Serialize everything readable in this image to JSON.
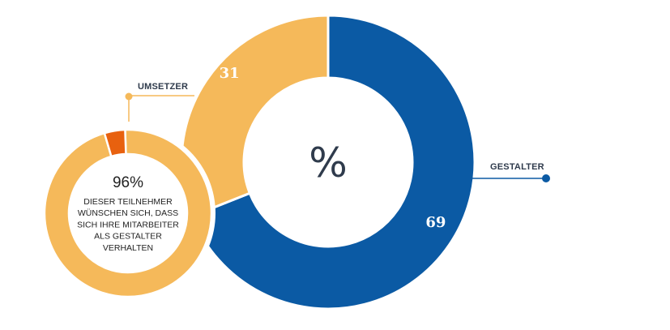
{
  "chart_data": [
    {
      "type": "pie",
      "variant": "donut",
      "center_label": "%",
      "series": [
        {
          "name": "GESTALTER",
          "value": 69,
          "color": "#0b5aa4"
        },
        {
          "name": "UMSETZER",
          "value": 31,
          "color": "#f5b95a"
        }
      ]
    },
    {
      "type": "pie",
      "variant": "donut",
      "center_value": "96%",
      "center_text_lines": [
        "DIESER TEILNEHMER",
        "WÜNSCHEN SICH, DASS",
        "SICH IHRE MITARBEITER",
        "ALS GESTALTER",
        "VERHALTEN"
      ],
      "series": [
        {
          "value": 96,
          "color": "#f5b95a"
        },
        {
          "value": 4,
          "color": "#e8610f"
        }
      ]
    }
  ],
  "colors": {
    "dark_text": "#2f3b4c",
    "accent_blue": "#0b5aa4",
    "accent_yellow": "#f5b95a",
    "accent_orange": "#e8610f",
    "leader_yellow": "#f5b95a",
    "leader_blue": "#0b5aa4"
  }
}
